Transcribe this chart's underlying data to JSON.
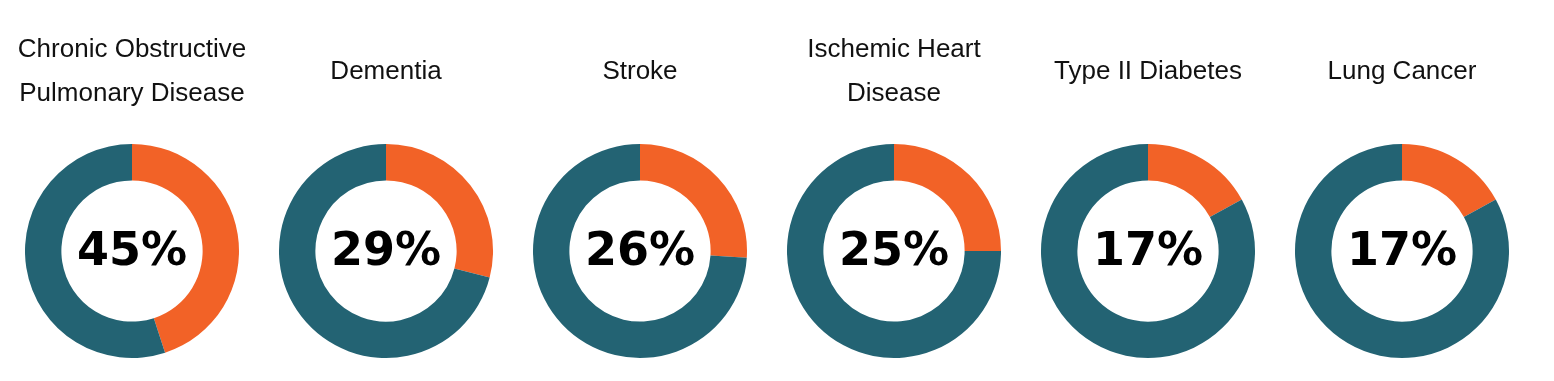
{
  "chart_data": [
    {
      "type": "donut",
      "title": "Chronic Obstructive Pulmonary Disease",
      "categories": [
        null,
        null
      ],
      "values": [
        45,
        55
      ],
      "colors": [
        "#f26227",
        "#236373"
      ],
      "value_labels": [
        "45%",
        null
      ]
    },
    {
      "type": "donut",
      "title": "Dementia",
      "categories": [
        null,
        null
      ],
      "values": [
        29,
        71
      ],
      "colors": [
        "#f26227",
        "#236373"
      ],
      "value_labels": [
        "29%",
        null
      ]
    },
    {
      "type": "donut",
      "title": "Stroke",
      "categories": [
        null,
        null
      ],
      "values": [
        26,
        74
      ],
      "colors": [
        "#f26227",
        "#236373"
      ],
      "value_labels": [
        "26%",
        null
      ]
    },
    {
      "type": "donut",
      "title": "Ischemic Heart Disease",
      "categories": [
        null,
        null
      ],
      "values": [
        25,
        75
      ],
      "colors": [
        "#f26227",
        "#236373"
      ],
      "value_labels": [
        "25%",
        null
      ]
    },
    {
      "type": "donut",
      "title": "Type II Diabetes",
      "categories": [
        null,
        null
      ],
      "values": [
        17,
        83
      ],
      "colors": [
        "#f26227",
        "#236373"
      ],
      "value_labels": [
        "17%",
        null
      ]
    },
    {
      "type": "donut",
      "title": "Lung Cancer",
      "categories": [
        null,
        null
      ],
      "values": [
        17,
        83
      ],
      "colors": [
        "#f26227",
        "#236373"
      ],
      "value_labels": [
        "17%",
        null
      ]
    }
  ]
}
